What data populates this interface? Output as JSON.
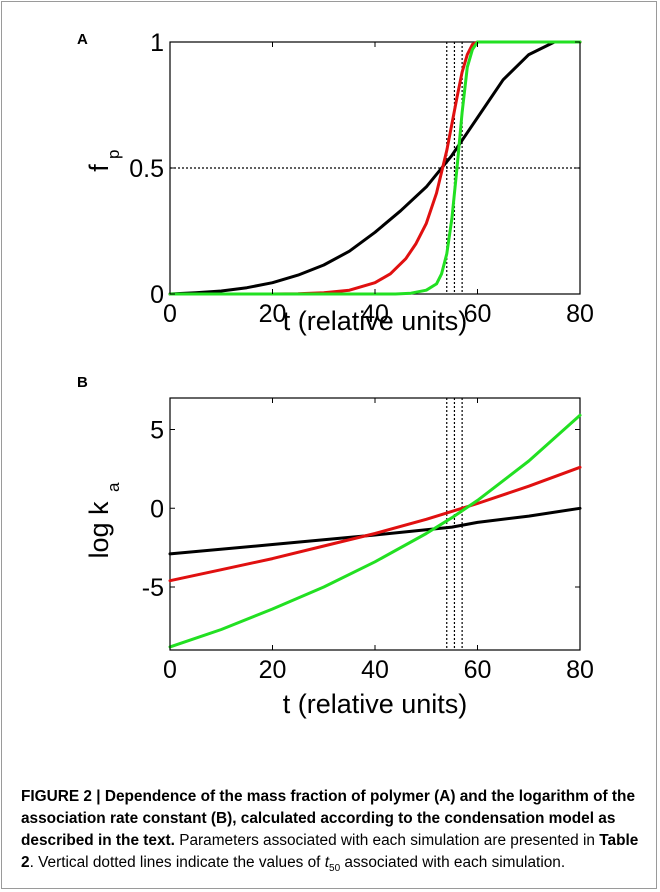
{
  "chart_data": [
    {
      "panel": "A",
      "type": "line",
      "xlabel": "t (relative units)",
      "ylabel_main": "f",
      "ylabel_sub": "p",
      "xlim": [
        0,
        80
      ],
      "ylim": [
        0,
        1
      ],
      "xticks": [
        0,
        20,
        40,
        60,
        80
      ],
      "yticks": [
        0,
        0.5,
        1
      ],
      "ytick_labels": [
        "0",
        "0.5",
        "1"
      ],
      "series": [
        {
          "color": "#000000",
          "x": [
            0,
            5,
            10,
            15,
            20,
            25,
            30,
            35,
            40,
            45,
            50,
            55,
            60,
            65,
            70,
            75,
            80
          ],
          "y": [
            0,
            0.005,
            0.012,
            0.025,
            0.045,
            0.075,
            0.115,
            0.17,
            0.245,
            0.33,
            0.425,
            0.55,
            0.7,
            0.85,
            0.95,
            1.0,
            1.0
          ]
        },
        {
          "color": "#e01010",
          "x": [
            0,
            20,
            25,
            30,
            35,
            40,
            43,
            46,
            48,
            50,
            52,
            54,
            56,
            57,
            58,
            59,
            60,
            80
          ],
          "y": [
            0,
            0,
            0.001,
            0.005,
            0.015,
            0.045,
            0.08,
            0.14,
            0.2,
            0.28,
            0.4,
            0.57,
            0.78,
            0.88,
            0.95,
            0.99,
            1.0,
            1.0
          ]
        },
        {
          "color": "#22e022",
          "x": [
            0,
            44,
            47,
            50,
            52,
            53,
            54,
            55,
            56,
            57,
            58,
            59,
            60,
            80
          ],
          "y": [
            0,
            0,
            0.003,
            0.015,
            0.04,
            0.08,
            0.16,
            0.3,
            0.5,
            0.72,
            0.9,
            0.97,
            1.0,
            1.0
          ]
        }
      ],
      "vlines": [
        54,
        55.5,
        57
      ],
      "hlines": [
        0.5
      ]
    },
    {
      "panel": "B",
      "type": "line",
      "xlabel": "t (relative units)",
      "ylabel_main": "log k",
      "ylabel_sub": "a",
      "xlim": [
        0,
        80
      ],
      "ylim": [
        -9,
        7
      ],
      "xticks": [
        0,
        20,
        40,
        60,
        80
      ],
      "yticks": [
        5,
        0,
        -5
      ],
      "ytick_labels": [
        "5",
        "0",
        "-5"
      ],
      "series": [
        {
          "color": "#000000",
          "x": [
            0,
            20,
            40,
            55,
            60,
            70,
            80
          ],
          "y": [
            -2.9,
            -2.3,
            -1.7,
            -1.2,
            -0.9,
            -0.5,
            0.0
          ]
        },
        {
          "color": "#e01010",
          "x": [
            0,
            10,
            20,
            30,
            40,
            50,
            60,
            70,
            80
          ],
          "y": [
            -4.6,
            -3.9,
            -3.2,
            -2.4,
            -1.6,
            -0.7,
            0.3,
            1.4,
            2.6
          ]
        },
        {
          "color": "#22e022",
          "x": [
            0,
            10,
            20,
            30,
            40,
            50,
            55,
            60,
            70,
            80
          ],
          "y": [
            -8.8,
            -7.7,
            -6.4,
            -5.0,
            -3.4,
            -1.6,
            -0.6,
            0.5,
            3.0,
            5.9
          ]
        }
      ],
      "vlines": [
        54,
        55.5,
        57
      ],
      "hlines": []
    }
  ],
  "caption": {
    "bold_part": "FIGURE 2 | Dependence of the mass fraction of polymer (A) and the logarithm of the association rate constant (B), calculated according to the condensation model as described in the text.",
    "text_1": " Parameters associated with each simulation are presented in ",
    "table_ref": "Table 2",
    "text_2": ". Vertical dotted lines indicate the values of ",
    "t_main": "t",
    "t_sub": "50",
    "text_3": " associated with each simulation."
  }
}
